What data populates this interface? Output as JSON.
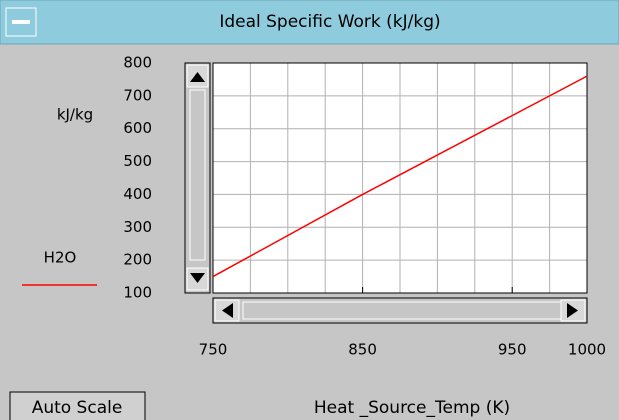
{
  "window": {
    "title": "Ideal Specific Work (kJ/kg)",
    "button": "Auto Scale"
  },
  "chart_data": {
    "type": "line",
    "ylabel": "kJ/kg",
    "xlabel": "Heat _Source_Temp (K)",
    "x": [
      750,
      850,
      1000
    ],
    "series": [
      {
        "name": "H2O",
        "color": "#ff0000",
        "values": [
          150,
          400,
          760
        ]
      }
    ],
    "xlim": [
      750,
      1000
    ],
    "xticks": [
      750,
      850,
      950,
      1000
    ],
    "xgrid": [
      775,
      800,
      825,
      850,
      875,
      900,
      925,
      950,
      975
    ],
    "ylim": [
      100,
      800
    ],
    "yticks": [
      100,
      200,
      300,
      400,
      500,
      600,
      700,
      800
    ],
    "grid": true
  }
}
